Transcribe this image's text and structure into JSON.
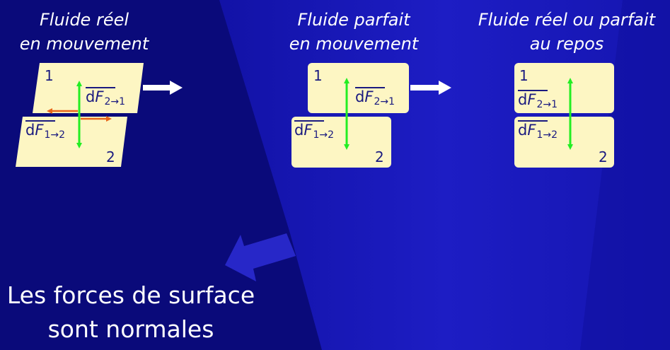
{
  "headings": {
    "col1": {
      "line1": "Fluide réel",
      "line2": "en mouvement"
    },
    "col2": {
      "line1": "Fluide parfait",
      "line2": "en mouvement"
    },
    "col3": {
      "line1": "Fluide réel ou parfait",
      "line2": "au repos"
    }
  },
  "conclusion": {
    "line1": "Les forces de surface",
    "line2": "sont normales"
  },
  "labels": {
    "upper": "1",
    "lower": "2"
  },
  "vectors": {
    "f21": {
      "d": "d",
      "F": "F",
      "sub": "2→1"
    },
    "f12": {
      "d": "d",
      "F": "F",
      "sub": "1→2"
    }
  },
  "colors": {
    "background": "#0a0a7a",
    "panel": "#fdf6c3",
    "normal_force": "#22ee22",
    "tangential_force": "#e8661a",
    "arrow": "#ffffff",
    "text": "#1a1a80"
  }
}
